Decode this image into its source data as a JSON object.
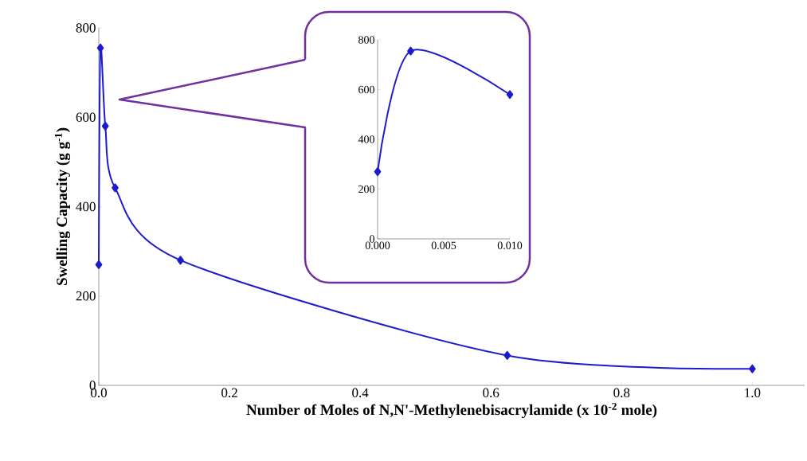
{
  "chart_data": [
    {
      "type": "line",
      "xlabel": "Number of Moles of N,N'-Methylenebisacrylamide (x 10$^{-2}$ mole)",
      "ylabel": "Swelling Capacity (g g$^{-1}$)",
      "x": [
        0,
        0.0025,
        0.01,
        0.025,
        0.125,
        0.625,
        1.0
      ],
      "values": [
        270,
        755,
        580,
        442,
        280,
        67,
        37
      ],
      "color": "#1c1ccc",
      "marker": "diamond",
      "line_style": "solid",
      "xlim": [
        0,
        1.08
      ],
      "ylim": [
        0,
        800
      ],
      "xticks": [
        {
          "value": 0,
          "label": "0.0"
        },
        {
          "value": 0.2,
          "label": "0.2"
        },
        {
          "value": 0.4,
          "label": "0.4"
        },
        {
          "value": 0.6,
          "label": "0.6"
        },
        {
          "value": 0.8,
          "label": "0.8"
        },
        {
          "value": 1.0,
          "label": "1.0"
        }
      ],
      "yticks": [
        0,
        200,
        400,
        600,
        800
      ]
    },
    {
      "type": "line",
      "x": [
        0,
        0.0025,
        0.01
      ],
      "values": [
        270,
        755,
        580
      ],
      "color": "#1c1ccc",
      "marker": "diamond",
      "line_style": "solid",
      "xlim": [
        0,
        0.01
      ],
      "ylim": [
        0,
        800
      ],
      "xticks": [
        {
          "value": 0,
          "label": "0.000"
        },
        {
          "value": 0.005,
          "label": "0.005"
        },
        {
          "value": 0.01,
          "label": "0.010"
        }
      ],
      "yticks": [
        0,
        200,
        400,
        600,
        800
      ]
    }
  ]
}
